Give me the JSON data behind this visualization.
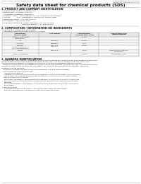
{
  "header_left": "Product Name: Lithium Ion Battery Cell",
  "header_right": "Substance Number: SBS-048-00013\nEstablished / Revision: Dec.7.2009",
  "main_title": "Safety data sheet for chemical products (SDS)",
  "s1_title": "1. PRODUCT AND COMPANY IDENTIFICATION",
  "s1_lines": [
    " • Product name: Lithium Ion Battery Cell",
    " • Product code: Cylindrical-type cell",
    "    (ILP18650U, ILP18650L, ILP18650A)",
    " • Company name:     Sanyo Electric Co., Ltd., Mobile Energy Company",
    " • Address:           2001  Kamitakatani, Sumoto-City, Hyogo, Japan",
    " • Telephone number:  +81-799-26-4111",
    " • Fax number:  +81-799-26-4129",
    " • Emergency telephone number (daytime): +81-799-26-3042",
    "                                      (Night and holiday): +81-799-26-3101"
  ],
  "s2_title": "2. COMPOSITION / INFORMATION ON INGREDIENTS",
  "s2_sub1": " • Substance or preparation: Preparation",
  "s2_sub2": " • Information about the chemical nature of product:",
  "tbl_h1": "Component /\nGeneral name",
  "tbl_h2": "CAS number",
  "tbl_h3": "Concentration /\nConcentration range",
  "tbl_h4": "Classification and\nhazard labeling",
  "tbl_rows": [
    [
      "Lithium cobalt oxide\n(LiMnCoNiO2)",
      "-",
      "30-50%",
      ""
    ],
    [
      "Iron",
      "7439-89-6",
      "15-25%",
      "-"
    ],
    [
      "Aluminum",
      "7429-90-5",
      "2-5%",
      "-"
    ],
    [
      "Graphite\n(Mixed in graphite-1)\n(All mixed graphite-2)",
      "7782-42-5\n7782-42-5",
      "10-25%",
      ""
    ],
    [
      "Copper",
      "7440-50-8",
      "5-15%",
      "Sensitization of the skin\ngroup No.2"
    ],
    [
      "Organic electrolyte",
      "-",
      "10-20%",
      "Inflammable liquid"
    ]
  ],
  "s3_title": "3. HAZARDS IDENTIFICATION",
  "s3_para": [
    "   For the battery cell, chemical substances are stored in a hermetically sealed metal case, designed to withstand",
    "temperatures and pressures experienced during normal use. As a result, during normal use, there is no",
    "physical danger of ignition or explosion and there is no danger of hazardous materials leakage.",
    "   However, if exposed to a fire, added mechanical shocks, decomposed, when electric short-circuiting may cause.",
    "The gas release cannot be operated. The battery cell case will be breached at the extreme. hazardous",
    "materials may be released.",
    "   Moreover, if heated strongly by the surrounding fire, soot gas may be emitted."
  ],
  "s3_b1": " • Most important hazard and effects:",
  "s3_human": "Human health effects:",
  "s3_human_lines": [
    "      Inhalation: The release of the electrolyte has an anaesthesia action and stimulates in respiratory tract.",
    "      Skin contact: The release of the electrolyte stimulates a skin. The electrolyte skin contact causes a",
    "      sore and stimulation on the skin.",
    "      Eye contact: The release of the electrolyte stimulates eyes. The electrolyte eye contact causes a sore",
    "      and stimulation on the eye. Especially, a substance that causes a strong inflammation of the eye is",
    "      contained.",
    "      Environmental effects: Since a battery cell remains in the environment, do not throw out it into the",
    "      environment."
  ],
  "s3_specific": " • Specific hazards:",
  "s3_specific_lines": [
    "      If the electrolyte contacts with water, it will generate detrimental hydrogen fluoride.",
    "      Since the used electrolyte is inflammable liquid, do not bring close to fire."
  ]
}
